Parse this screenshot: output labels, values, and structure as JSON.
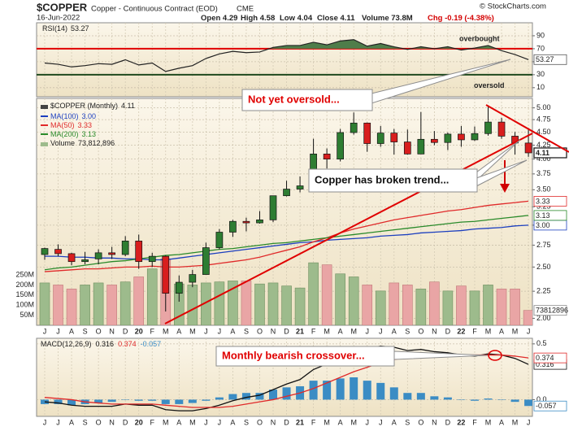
{
  "header": {
    "symbol": "$COPPER",
    "name": "Copper - Continuous Contract (EOD)",
    "exchange": "CME",
    "date": "16-Jun-2022",
    "quote": [
      "Open 4.29",
      "High 4.58",
      "Low 4.04",
      "Close 4.11",
      "Volume 73.8M",
      "Chg -0.19 (-4.38%)"
    ],
    "watermark": "© StockCharts.com"
  },
  "chart_data": [
    {
      "type": "line",
      "title": "RSI(14)",
      "ylim": [
        -4,
        110
      ],
      "yticks": [
        10,
        30,
        50,
        70,
        90
      ],
      "grid": true,
      "hlines": [
        {
          "value": 70,
          "color": "#e00000",
          "label": "overbought"
        },
        {
          "value": 30,
          "color": "#1f4a1f",
          "label": "oversold"
        }
      ],
      "fill_color": "#4f7d4a",
      "series": [
        {
          "color": "#222222",
          "values": [
            48,
            46,
            42,
            44,
            47,
            46,
            53,
            45,
            48,
            35,
            40,
            44,
            55,
            62,
            66,
            64,
            65,
            72,
            75,
            75,
            80,
            76,
            82,
            84,
            74,
            78,
            73,
            69,
            73,
            70,
            73,
            68,
            71,
            75,
            67,
            61,
            53.27
          ],
          "value_labels": [
            null,
            null,
            null,
            null,
            null,
            null,
            null,
            null,
            null,
            null,
            null,
            null,
            null,
            null,
            null,
            null,
            null,
            null,
            null,
            null,
            null,
            null,
            null,
            null,
            null,
            null,
            null,
            null,
            null,
            null,
            null,
            null,
            null,
            null,
            null,
            null,
            "53.27"
          ]
        }
      ]
    },
    {
      "type": "candlestick",
      "log_scale": true,
      "grid": true,
      "categories": [
        "J",
        "J",
        "A",
        "S",
        "O",
        "N",
        "D",
        "20",
        "F",
        "M",
        "A",
        "M",
        "J",
        "J",
        "A",
        "S",
        "O",
        "N",
        "D",
        "21",
        "F",
        "M",
        "A",
        "M",
        "J",
        "J",
        "A",
        "S",
        "O",
        "N",
        "D",
        "22",
        "F",
        "M",
        "A",
        "M",
        "J"
      ],
      "ylim": [
        1.94,
        5.21
      ],
      "yticks": [
        {
          "value": 2,
          "label": "2.00"
        },
        {
          "value": 2.25,
          "label": "2.25"
        },
        {
          "value": 2.5,
          "label": "2.50"
        },
        {
          "value": 2.75,
          "label": "2.75"
        },
        {
          "value": 3,
          "label": "3.00"
        },
        {
          "value": 3.25,
          "label": "3.25"
        },
        {
          "value": 3.5,
          "label": "3.50"
        },
        {
          "value": 3.75,
          "label": "3.75"
        },
        {
          "value": 4,
          "label": "4.00"
        },
        {
          "value": 4.25,
          "label": "4.25"
        },
        {
          "value": 4.5,
          "label": "4.50"
        },
        {
          "value": 4.75,
          "label": "4.75"
        },
        {
          "value": 5,
          "label": "5.00"
        }
      ],
      "y2lim": [
        0,
        1125000000
      ],
      "y2ticks": [
        {
          "value": 50000000,
          "label": "50M"
        },
        {
          "value": 100000000,
          "label": "100M"
        },
        {
          "value": 150000000,
          "label": "150M"
        },
        {
          "value": 200000000,
          "label": "200M"
        },
        {
          "value": 250000000,
          "label": "250M"
        }
      ],
      "annotations": [
        "Not yet oversold...",
        "Copper has broken trend..."
      ],
      "series": [
        {
          "name": "$COPPER (Monthly)",
          "type": "candlestick",
          "up_color": "#2e7d32",
          "down_color": "#d81e1e",
          "open": [
            2.64,
            2.7,
            2.65,
            2.56,
            2.59,
            2.66,
            2.64,
            2.8,
            2.56,
            2.62,
            2.23,
            2.34,
            2.42,
            2.72,
            2.91,
            3.05,
            3.03,
            3.07,
            3.41,
            3.51,
            3.56,
            4.09,
            4.0,
            4.49,
            4.68,
            4.28,
            4.48,
            4.31,
            4.09,
            4.36,
            4.3,
            4.46,
            4.35,
            4.47,
            4.7,
            4.42,
            4.29
          ],
          "high": [
            2.72,
            2.76,
            2.66,
            2.67,
            2.7,
            2.73,
            2.86,
            2.88,
            2.66,
            2.63,
            2.41,
            2.47,
            2.78,
            2.95,
            3.07,
            3.1,
            3.19,
            3.41,
            3.64,
            3.71,
            4.37,
            4.19,
            4.56,
            4.9,
            4.69,
            4.62,
            4.56,
            4.55,
            4.91,
            4.52,
            4.49,
            4.62,
            4.61,
            5.05,
            4.79,
            4.5,
            4.58
          ],
          "low": [
            2.58,
            2.62,
            2.52,
            2.53,
            2.53,
            2.59,
            2.62,
            2.48,
            2.5,
            2.06,
            2.15,
            2.29,
            2.42,
            2.7,
            2.85,
            2.92,
            3.02,
            3.04,
            3.4,
            3.46,
            3.52,
            3.84,
            3.96,
            4.45,
            4.13,
            4.22,
            4.08,
            4.08,
            4.09,
            4.25,
            4.16,
            4.22,
            4.33,
            4.43,
            4.37,
            4.08,
            4.04
          ],
          "close": [
            2.71,
            2.65,
            2.56,
            2.58,
            2.66,
            2.64,
            2.8,
            2.56,
            2.62,
            2.23,
            2.34,
            2.42,
            2.72,
            2.91,
            3.05,
            3.03,
            3.07,
            3.41,
            3.51,
            3.56,
            4.09,
            4.0,
            4.49,
            4.68,
            4.28,
            4.48,
            4.31,
            4.09,
            4.36,
            4.3,
            4.46,
            4.35,
            4.47,
            4.7,
            4.42,
            4.29,
            4.11
          ],
          "value_labels": [
            null,
            null,
            null,
            null,
            null,
            null,
            null,
            null,
            null,
            null,
            null,
            null,
            null,
            null,
            null,
            null,
            null,
            null,
            null,
            null,
            null,
            null,
            null,
            null,
            null,
            null,
            null,
            null,
            null,
            null,
            null,
            null,
            null,
            null,
            null,
            null,
            "4.11"
          ]
        },
        {
          "name": "MA(100)",
          "type": "line",
          "color": "#1c3fbf",
          "values": [
            2.62,
            2.62,
            2.61,
            2.61,
            2.6,
            2.6,
            2.59,
            2.59,
            2.58,
            2.58,
            2.6,
            2.62,
            2.64,
            2.66,
            2.68,
            2.7,
            2.72,
            2.74,
            2.76,
            2.78,
            2.79,
            2.81,
            2.82,
            2.83,
            2.84,
            2.86,
            2.87,
            2.88,
            2.9,
            2.91,
            2.92,
            2.93,
            2.95,
            2.96,
            2.97,
            2.99,
            3.0
          ],
          "value_labels": [
            null,
            null,
            null,
            null,
            null,
            null,
            null,
            null,
            null,
            null,
            null,
            null,
            null,
            null,
            null,
            null,
            null,
            null,
            null,
            null,
            null,
            null,
            null,
            null,
            null,
            null,
            null,
            null,
            null,
            null,
            null,
            null,
            null,
            null,
            null,
            null,
            "3.00"
          ]
        },
        {
          "name": "MA(50)",
          "type": "line",
          "color": "#e02a2a",
          "values": [
            2.45,
            2.46,
            2.47,
            2.48,
            2.48,
            2.49,
            2.5,
            2.5,
            2.51,
            2.5,
            2.5,
            2.51,
            2.52,
            2.54,
            2.56,
            2.58,
            2.61,
            2.65,
            2.69,
            2.73,
            2.79,
            2.84,
            2.9,
            2.95,
            2.99,
            3.03,
            3.07,
            3.1,
            3.13,
            3.16,
            3.19,
            3.21,
            3.24,
            3.27,
            3.29,
            3.31,
            3.33
          ],
          "value_labels": [
            null,
            null,
            null,
            null,
            null,
            null,
            null,
            null,
            null,
            null,
            null,
            null,
            null,
            null,
            null,
            null,
            null,
            null,
            null,
            null,
            null,
            null,
            null,
            null,
            null,
            null,
            null,
            null,
            null,
            null,
            null,
            null,
            null,
            null,
            null,
            null,
            "3.33"
          ]
        },
        {
          "name": "MA(200)",
          "type": "line",
          "color": "#2a8a2a",
          "values": [
            2.47,
            2.49,
            2.5,
            2.52,
            2.54,
            2.56,
            2.57,
            2.59,
            2.61,
            2.63,
            2.64,
            2.66,
            2.68,
            2.7,
            2.71,
            2.73,
            2.75,
            2.77,
            2.78,
            2.8,
            2.82,
            2.84,
            2.86,
            2.88,
            2.9,
            2.92,
            2.94,
            2.96,
            2.98,
            3.0,
            3.02,
            3.04,
            3.05,
            3.07,
            3.09,
            3.11,
            3.13
          ],
          "value_labels": [
            null,
            null,
            null,
            null,
            null,
            null,
            null,
            null,
            null,
            null,
            null,
            null,
            null,
            null,
            null,
            null,
            null,
            null,
            null,
            null,
            null,
            null,
            null,
            null,
            null,
            null,
            null,
            null,
            null,
            null,
            null,
            null,
            null,
            null,
            null,
            null,
            "3.13"
          ]
        },
        {
          "name": "Volume",
          "type": "bar",
          "axis": "y2",
          "color": "#9dbb8c",
          "down_color": "#e9a5a5",
          "values": [
            210000000,
            200000000,
            180000000,
            200000000,
            210000000,
            200000000,
            215000000,
            240000000,
            280000000,
            330000000,
            205000000,
            200000000,
            210000000,
            215000000,
            220000000,
            220000000,
            205000000,
            210000000,
            195000000,
            185000000,
            310000000,
            300000000,
            255000000,
            240000000,
            200000000,
            170000000,
            210000000,
            200000000,
            180000000,
            215000000,
            170000000,
            195000000,
            170000000,
            200000000,
            180000000,
            180000000,
            73812896
          ],
          "value_labels": [
            null,
            null,
            null,
            null,
            null,
            null,
            null,
            null,
            null,
            null,
            null,
            null,
            null,
            null,
            null,
            null,
            null,
            null,
            null,
            null,
            null,
            null,
            null,
            null,
            null,
            null,
            null,
            null,
            null,
            null,
            null,
            null,
            null,
            null,
            null,
            null,
            "73,812,896"
          ]
        }
      ]
    },
    {
      "type": "macd",
      "title": "MACD(12,26,9)",
      "grid": true,
      "categories": [
        "J",
        "J",
        "A",
        "S",
        "O",
        "N",
        "D",
        "20",
        "F",
        "M",
        "A",
        "M",
        "J",
        "J",
        "A",
        "S",
        "O",
        "N",
        "D",
        "21",
        "F",
        "M",
        "A",
        "M",
        "J",
        "J",
        "A",
        "S",
        "O",
        "N",
        "D",
        "22",
        "F",
        "M",
        "A",
        "M",
        "J"
      ],
      "ylim": [
        -0.15,
        0.55
      ],
      "yticks": [
        {
          "value": 0,
          "label": "0.0"
        },
        {
          "value": 0.5,
          "label": "0.5"
        }
      ],
      "annotations": [
        "Monthly bearish crossover..."
      ],
      "series": [
        {
          "type": "line",
          "color": "#111111",
          "values": [
            -0.02,
            -0.03,
            -0.05,
            -0.06,
            -0.06,
            -0.06,
            -0.04,
            -0.05,
            -0.05,
            -0.09,
            -0.1,
            -0.1,
            -0.08,
            -0.05,
            -0.01,
            0.02,
            0.04,
            0.09,
            0.14,
            0.18,
            0.27,
            0.32,
            0.39,
            0.45,
            0.46,
            0.48,
            0.47,
            0.44,
            0.45,
            0.43,
            0.42,
            0.4,
            0.39,
            0.41,
            0.4,
            0.37,
            0.316
          ],
          "value_labels": [
            null,
            null,
            null,
            null,
            null,
            null,
            null,
            null,
            null,
            null,
            null,
            null,
            null,
            null,
            null,
            null,
            null,
            null,
            null,
            null,
            null,
            null,
            null,
            null,
            null,
            null,
            null,
            null,
            null,
            null,
            null,
            null,
            null,
            null,
            null,
            null,
            "0.316"
          ]
        },
        {
          "type": "line",
          "color": "#e02a2a",
          "values": [
            0.02,
            0.01,
            0.0,
            -0.02,
            -0.03,
            -0.04,
            -0.04,
            -0.04,
            -0.04,
            -0.05,
            -0.06,
            -0.07,
            -0.07,
            -0.07,
            -0.06,
            -0.04,
            -0.02,
            0.0,
            0.03,
            0.06,
            0.1,
            0.15,
            0.2,
            0.25,
            0.29,
            0.33,
            0.36,
            0.38,
            0.39,
            0.4,
            0.4,
            0.4,
            0.4,
            0.4,
            0.4,
            0.39,
            0.374
          ],
          "value_labels": [
            null,
            null,
            null,
            null,
            null,
            null,
            null,
            null,
            null,
            null,
            null,
            null,
            null,
            null,
            null,
            null,
            null,
            null,
            null,
            null,
            null,
            null,
            null,
            null,
            null,
            null,
            null,
            null,
            null,
            null,
            null,
            null,
            null,
            null,
            null,
            null,
            "0.374"
          ]
        },
        {
          "type": "bar",
          "color": "#3b8cc4",
          "values": [
            -0.04,
            -0.04,
            -0.05,
            -0.04,
            -0.03,
            -0.02,
            0.0,
            -0.01,
            -0.01,
            -0.04,
            -0.04,
            -0.03,
            -0.01,
            0.02,
            0.05,
            0.06,
            0.06,
            0.09,
            0.11,
            0.12,
            0.17,
            0.17,
            0.19,
            0.2,
            0.17,
            0.15,
            0.11,
            0.06,
            0.06,
            0.03,
            0.02,
            0.0,
            -0.01,
            0.01,
            0.0,
            -0.02,
            -0.057
          ],
          "value_labels": [
            null,
            null,
            null,
            null,
            null,
            null,
            null,
            null,
            null,
            null,
            null,
            null,
            null,
            null,
            null,
            null,
            null,
            null,
            null,
            null,
            null,
            null,
            null,
            null,
            null,
            null,
            null,
            null,
            null,
            null,
            null,
            null,
            null,
            null,
            null,
            null,
            "-0.057"
          ]
        }
      ]
    }
  ]
}
